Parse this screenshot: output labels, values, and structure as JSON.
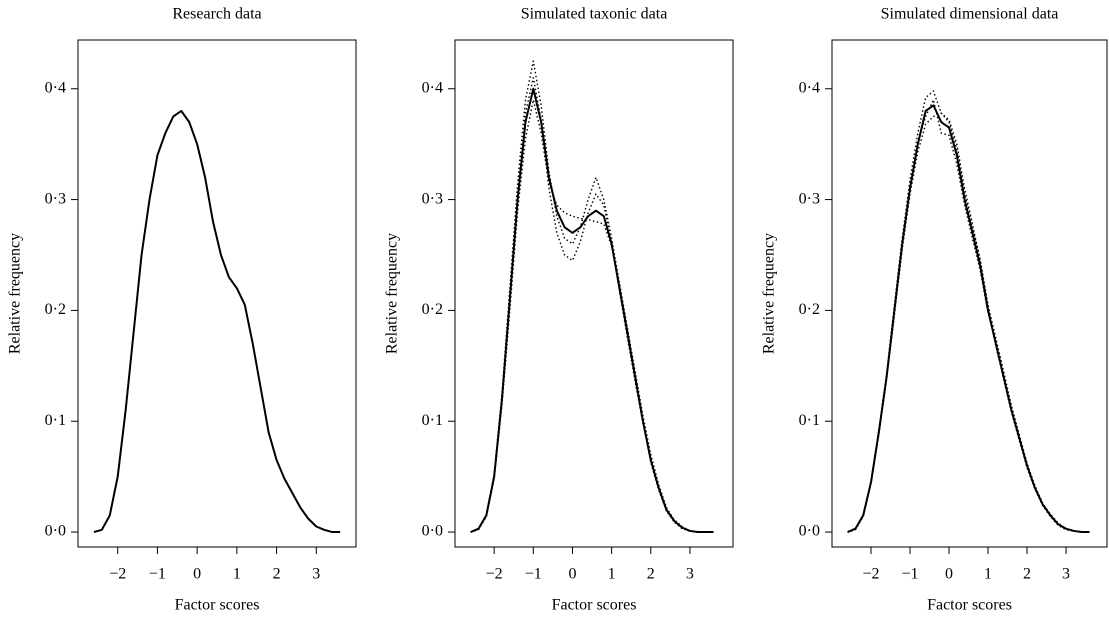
{
  "chart_data": [
    {
      "type": "line",
      "title": "Research data",
      "xlabel": "Factor scores",
      "ylabel": "Relative frequency",
      "x": [
        -2.6,
        -2.4,
        -2.2,
        -2.0,
        -1.8,
        -1.6,
        -1.4,
        -1.2,
        -1.0,
        -0.8,
        -0.6,
        -0.4,
        -0.2,
        0,
        0.2,
        0.4,
        0.6,
        0.8,
        1.0,
        1.2,
        1.4,
        1.6,
        1.8,
        2.0,
        2.2,
        2.4,
        2.6,
        2.8,
        3.0,
        3.2,
        3.4,
        3.6
      ],
      "series": [
        {
          "color": "#000000",
          "linestyle": "solid",
          "values": [
            0,
            0.002,
            0.015,
            0.05,
            0.11,
            0.18,
            0.25,
            0.3,
            0.34,
            0.36,
            0.375,
            0.38,
            0.37,
            0.35,
            0.32,
            0.28,
            0.25,
            0.23,
            0.22,
            0.205,
            0.17,
            0.13,
            0.09,
            0.065,
            0.048,
            0.035,
            0.022,
            0.012,
            0.005,
            0.002,
            0,
            0
          ]
        }
      ],
      "xlim": [
        -3.0,
        4.0
      ],
      "ylim": [
        -0.0135,
        0.444
      ],
      "xticks": [
        {
          "value": -2,
          "label": "−2"
        },
        {
          "value": -1,
          "label": "−1"
        },
        0,
        1,
        2,
        3
      ],
      "yticks": [
        {
          "value": 0,
          "label": "0·0"
        },
        {
          "value": 0.1,
          "label": "0·1"
        },
        {
          "value": 0.2,
          "label": "0·2"
        },
        {
          "value": 0.3,
          "label": "0·3"
        },
        {
          "value": 0.4,
          "label": "0·4"
        }
      ]
    },
    {
      "type": "line",
      "title": "Simulated taxonic data",
      "xlabel": "Factor scores",
      "ylabel": "Relative frequency",
      "x": [
        -2.6,
        -2.4,
        -2.2,
        -2.0,
        -1.8,
        -1.6,
        -1.4,
        -1.2,
        -1.0,
        -0.8,
        -0.6,
        -0.4,
        -0.2,
        0,
        0.2,
        0.4,
        0.6,
        0.8,
        1.0,
        1.2,
        1.4,
        1.6,
        1.8,
        2.0,
        2.2,
        2.4,
        2.6,
        2.8,
        3.0,
        3.2,
        3.4,
        3.6
      ],
      "series": [
        {
          "color": "#000000",
          "linestyle": "dotted",
          "values": [
            0,
            0.003,
            0.016,
            0.052,
            0.125,
            0.22,
            0.315,
            0.39,
            0.425,
            0.385,
            0.325,
            0.285,
            0.265,
            0.26,
            0.275,
            0.3,
            0.32,
            0.3,
            0.265,
            0.225,
            0.185,
            0.145,
            0.105,
            0.07,
            0.043,
            0.022,
            0.011,
            0.005,
            0.001,
            0,
            0,
            0
          ]
        },
        {
          "color": "#000000",
          "linestyle": "dotted",
          "values": [
            0,
            0.002,
            0.014,
            0.048,
            0.115,
            0.2,
            0.29,
            0.355,
            0.39,
            0.36,
            0.315,
            0.295,
            0.288,
            0.285,
            0.283,
            0.282,
            0.28,
            0.278,
            0.258,
            0.222,
            0.183,
            0.142,
            0.1,
            0.063,
            0.038,
            0.019,
            0.009,
            0.003,
            0.001,
            0,
            0,
            0
          ]
        },
        {
          "color": "#000000",
          "linestyle": "dotted",
          "values": [
            0,
            0.003,
            0.015,
            0.05,
            0.118,
            0.212,
            0.305,
            0.378,
            0.41,
            0.372,
            0.31,
            0.27,
            0.25,
            0.245,
            0.262,
            0.288,
            0.305,
            0.295,
            0.262,
            0.218,
            0.176,
            0.136,
            0.098,
            0.066,
            0.041,
            0.021,
            0.01,
            0.004,
            0.001,
            0,
            0,
            0
          ]
        },
        {
          "color": "#000000",
          "linestyle": "solid",
          "values": [
            0,
            0.003,
            0.015,
            0.05,
            0.12,
            0.21,
            0.3,
            0.37,
            0.4,
            0.37,
            0.32,
            0.29,
            0.275,
            0.27,
            0.275,
            0.285,
            0.29,
            0.285,
            0.26,
            0.22,
            0.18,
            0.14,
            0.1,
            0.065,
            0.04,
            0.02,
            0.01,
            0.004,
            0.001,
            0,
            0,
            0
          ]
        }
      ],
      "xlim": [
        -3.0,
        4.1
      ],
      "ylim": [
        -0.0135,
        0.444
      ],
      "xticks": [
        {
          "value": -2,
          "label": "−2"
        },
        {
          "value": -1,
          "label": "−1"
        },
        0,
        1,
        2,
        3
      ],
      "yticks": [
        {
          "value": 0,
          "label": "0·0"
        },
        {
          "value": 0.1,
          "label": "0·1"
        },
        {
          "value": 0.2,
          "label": "0·2"
        },
        {
          "value": 0.3,
          "label": "0·3"
        },
        {
          "value": 0.4,
          "label": "0·4"
        }
      ]
    },
    {
      "type": "line",
      "title": "Simulated dimensional data",
      "xlabel": "Factor scores",
      "ylabel": "Relative frequency",
      "x": [
        -2.6,
        -2.4,
        -2.2,
        -2.0,
        -1.8,
        -1.6,
        -1.4,
        -1.2,
        -1.0,
        -0.8,
        -0.6,
        -0.4,
        -0.2,
        0,
        0.2,
        0.4,
        0.6,
        0.8,
        1.0,
        1.2,
        1.4,
        1.6,
        1.8,
        2.0,
        2.2,
        2.4,
        2.6,
        2.8,
        3.0,
        3.2,
        3.4,
        3.6
      ],
      "series": [
        {
          "color": "#000000",
          "linestyle": "dotted",
          "values": [
            0,
            0.003,
            0.016,
            0.046,
            0.092,
            0.143,
            0.205,
            0.265,
            0.318,
            0.36,
            0.392,
            0.398,
            0.378,
            0.37,
            0.345,
            0.305,
            0.275,
            0.245,
            0.205,
            0.175,
            0.145,
            0.114,
            0.088,
            0.062,
            0.042,
            0.026,
            0.016,
            0.008,
            0.003,
            0.001,
            0,
            0
          ]
        },
        {
          "color": "#000000",
          "linestyle": "dotted",
          "values": [
            0,
            0.002,
            0.014,
            0.044,
            0.088,
            0.138,
            0.196,
            0.255,
            0.305,
            0.343,
            0.368,
            0.375,
            0.378,
            0.372,
            0.35,
            0.31,
            0.278,
            0.245,
            0.203,
            0.168,
            0.138,
            0.108,
            0.083,
            0.058,
            0.039,
            0.024,
            0.014,
            0.006,
            0.002,
            0.001,
            0,
            0
          ]
        },
        {
          "color": "#000000",
          "linestyle": "dotted",
          "values": [
            0,
            0.003,
            0.015,
            0.045,
            0.09,
            0.14,
            0.2,
            0.262,
            0.312,
            0.352,
            0.375,
            0.39,
            0.36,
            0.358,
            0.332,
            0.295,
            0.265,
            0.236,
            0.198,
            0.172,
            0.142,
            0.112,
            0.087,
            0.061,
            0.041,
            0.025,
            0.015,
            0.007,
            0.003,
            0.001,
            0,
            0
          ]
        },
        {
          "color": "#000000",
          "linestyle": "solid",
          "values": [
            0,
            0.003,
            0.015,
            0.045,
            0.09,
            0.14,
            0.2,
            0.26,
            0.31,
            0.35,
            0.38,
            0.385,
            0.37,
            0.365,
            0.34,
            0.3,
            0.27,
            0.24,
            0.2,
            0.17,
            0.14,
            0.11,
            0.085,
            0.06,
            0.04,
            0.025,
            0.015,
            0.007,
            0.003,
            0.001,
            0,
            0
          ]
        }
      ],
      "xlim": [
        -3.0,
        4.05
      ],
      "ylim": [
        -0.0135,
        0.444
      ],
      "xticks": [
        {
          "value": -2,
          "label": "−2"
        },
        {
          "value": -1,
          "label": "−1"
        },
        0,
        1,
        2,
        3
      ],
      "yticks": [
        {
          "value": 0,
          "label": "0·0"
        },
        {
          "value": 0.1,
          "label": "0·1"
        },
        {
          "value": 0.2,
          "label": "0·2"
        },
        {
          "value": 0.3,
          "label": "0·3"
        },
        {
          "value": 0.4,
          "label": "0·4"
        }
      ]
    }
  ]
}
